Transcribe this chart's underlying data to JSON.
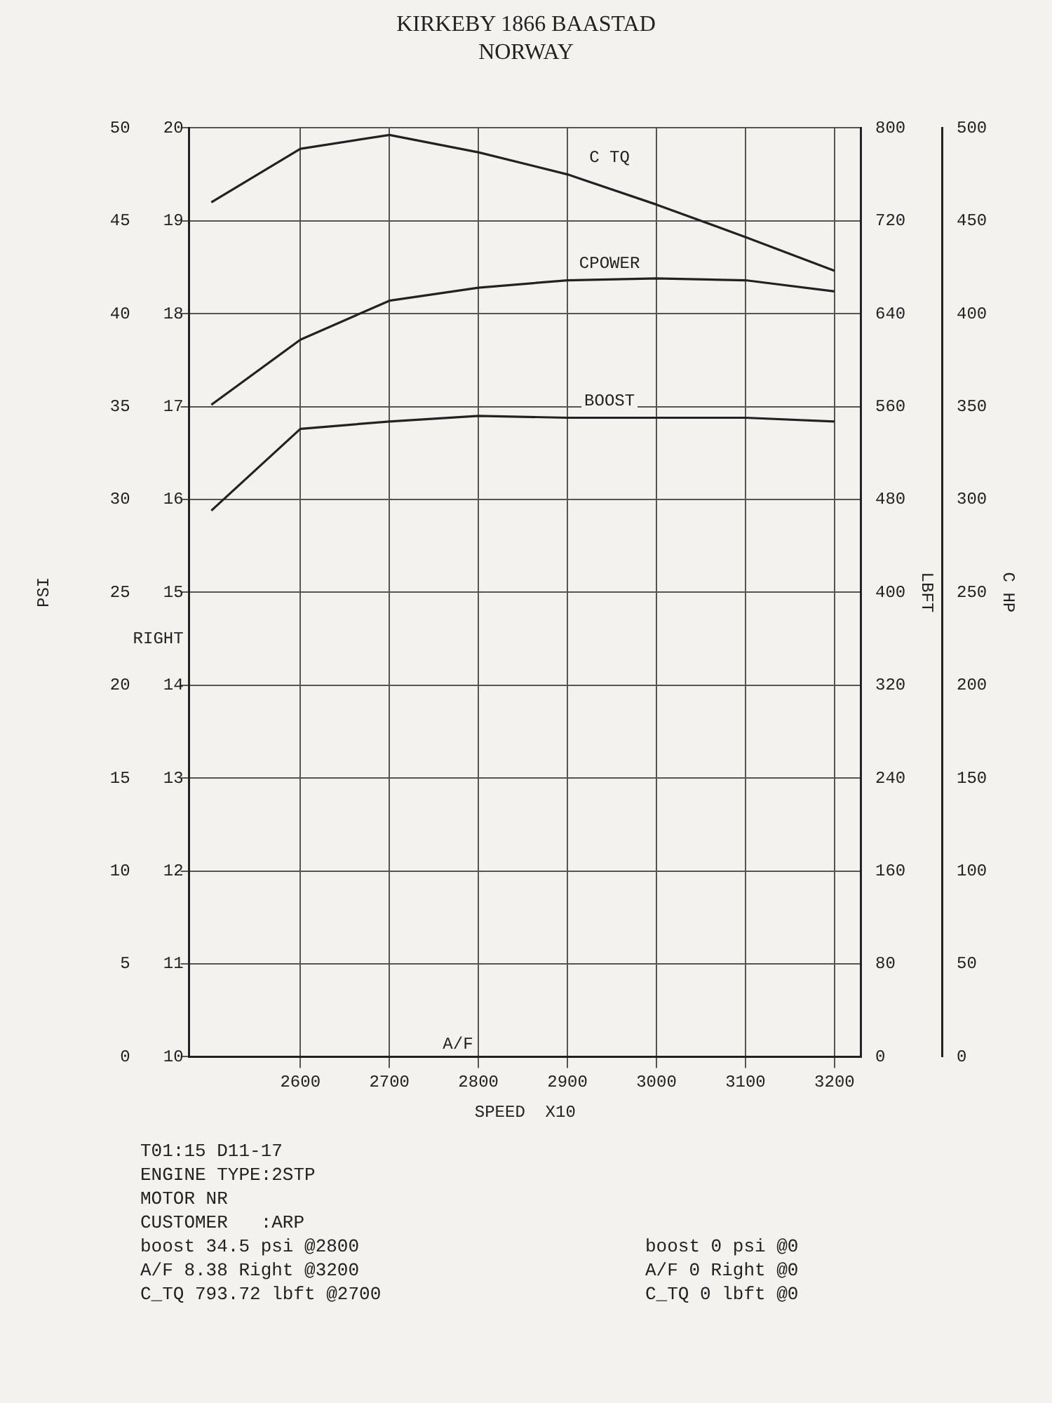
{
  "chart_data": {
    "type": "line",
    "title": "KIRKEBY 1866 BAASTAD",
    "subtitle": "NORWAY",
    "xlabel": "SPEED  X10",
    "ylabel": "PSI",
    "y2label": "LBFT",
    "y3label": "C HP",
    "x": [
      2500,
      2600,
      2700,
      2800,
      2900,
      3000,
      3100,
      3200
    ],
    "xlim": [
      2475,
      3230
    ],
    "xticks": [
      2600,
      2700,
      2800,
      2900,
      3000,
      3100,
      3200
    ],
    "ylim": [
      0,
      50
    ],
    "yticks": [
      0,
      5,
      10,
      15,
      20,
      25,
      30,
      35,
      40,
      45,
      50
    ],
    "y2lim": [
      0,
      800
    ],
    "y2ticks": [
      0,
      80,
      160,
      240,
      320,
      400,
      480,
      560,
      640,
      720,
      800
    ],
    "y3lim": [
      0,
      500
    ],
    "y3ticks": [
      0,
      50,
      100,
      150,
      200,
      250,
      300,
      350,
      400,
      450,
      500
    ],
    "series": [
      {
        "name": "C TQ",
        "color": "#222222",
        "axis": "y2",
        "values": [
          736,
          782,
          794,
          779,
          760,
          734,
          706,
          677
        ]
      },
      {
        "name": "CPOWER",
        "color": "#222222",
        "axis": "y3",
        "values": [
          351,
          386,
          407,
          414,
          418,
          419,
          418,
          412
        ]
      },
      {
        "name": "BOOST",
        "color": "#222222",
        "values": [
          29.4,
          33.8,
          34.2,
          34.5,
          34.4,
          34.4,
          34.4,
          34.2
        ]
      }
    ],
    "grid": true,
    "marker": "none",
    "line_style": "solid",
    "annotations": [
      "A/F",
      "RIGHT",
      "10",
      "11",
      "12",
      "13",
      "14",
      "15",
      "16",
      "17",
      "18",
      "19",
      "20",
      "T01:15 D11-17",
      "ENGINE TYPE:2STP",
      "MOTOR NR",
      "CUSTOMER   :ARP",
      "boost 34.5 psi @2800",
      "A/F 8.38 Right @3200",
      "C_TQ 793.72 lbft @2700",
      "boost 0 psi @0",
      "A/F 0 Right @0",
      "C_TQ 0 lbft @0"
    ]
  }
}
